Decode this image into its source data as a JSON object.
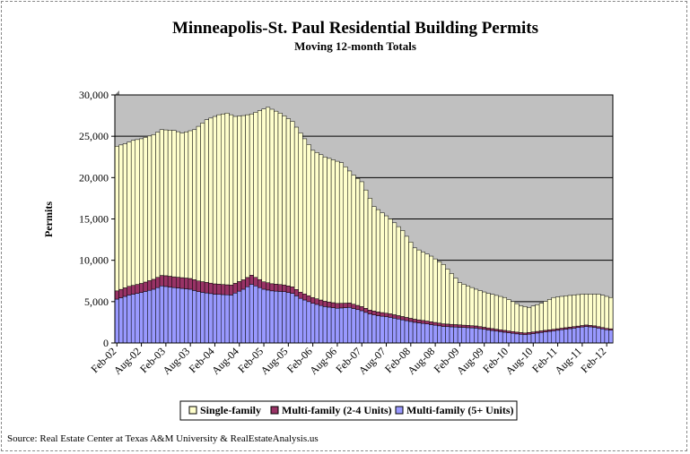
{
  "chart_data": {
    "type": "bar",
    "stacked": true,
    "title": "Minneapolis-St. Paul Residential Building Permits",
    "subtitle": "Moving 12-month Totals",
    "ylabel": "Permits",
    "xlabel": "",
    "ylim": [
      0,
      30000
    ],
    "yticks": [
      0,
      5000,
      10000,
      15000,
      20000,
      25000,
      30000
    ],
    "ytick_labels": [
      "0",
      "5,000",
      "10,000",
      "15,000",
      "20,000",
      "25,000",
      "30,000"
    ],
    "x_tick_labels": [
      "Feb-02",
      "Aug-02",
      "Feb-03",
      "Aug-03",
      "Feb-04",
      "Aug-04",
      "Feb-05",
      "Aug-05",
      "Feb-06",
      "Aug-06",
      "Feb-07",
      "Aug-07",
      "Feb-08",
      "Aug-08",
      "Feb-09",
      "Aug-09",
      "Feb-10",
      "Aug-10",
      "Feb-11",
      "Aug-11",
      "Feb-12"
    ],
    "x_start": "Feb-02",
    "x_end": "Mar-12",
    "grid": "horizontal",
    "plot_background": "#c0c0c0",
    "legend_position": "bottom",
    "series": [
      {
        "name": "Multi-family (5+ Units)",
        "color": "#9999ff",
        "anchors": [
          [
            0,
            5300
          ],
          [
            3,
            5800
          ],
          [
            6,
            6100
          ],
          [
            9,
            6500
          ],
          [
            11,
            6900
          ],
          [
            14,
            6700
          ],
          [
            18,
            6500
          ],
          [
            20,
            6200
          ],
          [
            24,
            5900
          ],
          [
            28,
            5800
          ],
          [
            31,
            6500
          ],
          [
            33,
            7100
          ],
          [
            36,
            6500
          ],
          [
            38,
            6300
          ],
          [
            41,
            6200
          ],
          [
            43,
            6000
          ],
          [
            45,
            5400
          ],
          [
            48,
            4800
          ],
          [
            51,
            4400
          ],
          [
            54,
            4200
          ],
          [
            57,
            4300
          ],
          [
            60,
            3900
          ],
          [
            62,
            3500
          ],
          [
            64,
            3300
          ],
          [
            67,
            3100
          ],
          [
            70,
            2800
          ],
          [
            73,
            2500
          ],
          [
            76,
            2300
          ],
          [
            80,
            2000
          ],
          [
            84,
            1900
          ],
          [
            88,
            1800
          ],
          [
            92,
            1500
          ],
          [
            95,
            1300
          ],
          [
            98,
            1100
          ],
          [
            100,
            1000
          ],
          [
            103,
            1200
          ],
          [
            106,
            1400
          ],
          [
            109,
            1600
          ],
          [
            112,
            1800
          ],
          [
            115,
            2000
          ],
          [
            117,
            1900
          ],
          [
            120,
            1600
          ],
          [
            122,
            1500
          ],
          [
            125,
            1500
          ],
          [
            127,
            1300
          ],
          [
            129,
            1500
          ],
          [
            130,
            1800
          ]
        ]
      },
      {
        "name": "Multi-family (2-4 Units)",
        "color": "#993366",
        "anchors": [
          [
            0,
            1000
          ],
          [
            6,
            1100
          ],
          [
            12,
            1300
          ],
          [
            20,
            1300
          ],
          [
            28,
            1200
          ],
          [
            33,
            1100
          ],
          [
            36,
            900
          ],
          [
            42,
            800
          ],
          [
            48,
            700
          ],
          [
            56,
            550
          ],
          [
            64,
            450
          ],
          [
            72,
            380
          ],
          [
            80,
            320
          ],
          [
            88,
            260
          ],
          [
            96,
            220
          ],
          [
            104,
            200
          ],
          [
            112,
            180
          ],
          [
            120,
            170
          ],
          [
            130,
            150
          ]
        ]
      },
      {
        "name": "Single-family",
        "color": "#ffffcc",
        "total_anchors": [
          [
            0,
            23800
          ],
          [
            2,
            24100
          ],
          [
            4,
            24500
          ],
          [
            6,
            24700
          ],
          [
            9,
            25200
          ],
          [
            11,
            25800
          ],
          [
            14,
            25700
          ],
          [
            16,
            25400
          ],
          [
            19,
            25800
          ],
          [
            22,
            27000
          ],
          [
            25,
            27600
          ],
          [
            27,
            27800
          ],
          [
            29,
            27400
          ],
          [
            31,
            27500
          ],
          [
            33,
            27700
          ],
          [
            35,
            28100
          ],
          [
            37,
            28500
          ],
          [
            40,
            27800
          ],
          [
            43,
            26800
          ],
          [
            46,
            24700
          ],
          [
            48,
            23300
          ],
          [
            51,
            22500
          ],
          [
            55,
            21800
          ],
          [
            58,
            20300
          ],
          [
            60,
            19500
          ],
          [
            63,
            16500
          ],
          [
            67,
            15000
          ],
          [
            70,
            13600
          ],
          [
            73,
            11500
          ],
          [
            77,
            10500
          ],
          [
            80,
            9500
          ],
          [
            84,
            7300
          ],
          [
            88,
            6500
          ],
          [
            91,
            6000
          ],
          [
            95,
            5500
          ],
          [
            99,
            4500
          ],
          [
            101,
            4300
          ],
          [
            104,
            4800
          ],
          [
            107,
            5500
          ],
          [
            110,
            5700
          ],
          [
            114,
            5900
          ],
          [
            118,
            5900
          ],
          [
            121,
            5500
          ],
          [
            125,
            5300
          ],
          [
            128,
            5200
          ],
          [
            130,
            5600
          ]
        ]
      }
    ]
  },
  "source_note": "Source: Real Estate Center at Texas A&M University & RealEstateAnalysis.us"
}
